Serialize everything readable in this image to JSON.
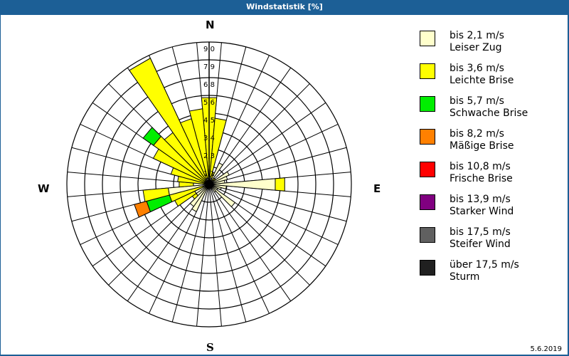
{
  "window": {
    "title": "Windstatistik [%]"
  },
  "footer": {
    "date": "5.6.2019"
  },
  "compass": {
    "n": "N",
    "e": "E",
    "s": "S",
    "w": "W"
  },
  "legend": [
    {
      "range": "bis 2,1 m/s",
      "name": "Leiser Zug",
      "color": "#ffffcc"
    },
    {
      "range": "bis 3,6 m/s",
      "name": "Leichte Brise",
      "color": "#ffff00"
    },
    {
      "range": "bis 5,7 m/s",
      "name": "Schwache Brise",
      "color": "#00ee00"
    },
    {
      "range": "bis 8,2 m/s",
      "name": "Mäßige Brise",
      "color": "#ff8000"
    },
    {
      "range": "bis 10,8 m/s",
      "name": "Frische Brise",
      "color": "#ff0000"
    },
    {
      "range": "bis 13,9 m/s",
      "name": "Starker Wind",
      "color": "#800080"
    },
    {
      "range": "bis 17,5 m/s",
      "name": "Steifer Wind",
      "color": "#606060"
    },
    {
      "range": "über 17,5 m/s",
      "name": "Sturm",
      "color": "#202020"
    }
  ],
  "chart_data": {
    "type": "polar-stacked-bar (wind rose)",
    "title": "Windstatistik [%]",
    "unit": "%",
    "radial_ticks": [
      "1,1",
      "2,3",
      "3,4",
      "4,5",
      "5,6",
      "6,8",
      "7,9",
      "9,0"
    ],
    "rmax": 9.0,
    "sector_width_deg": 10,
    "series_names": [
      "Leiser Zug",
      "Leichte Brise",
      "Schwache Brise",
      "Mäßige Brise"
    ],
    "sectors": [
      {
        "dir": 0,
        "values": [
          0.6,
          4.9,
          0,
          0
        ]
      },
      {
        "dir": 10,
        "values": [
          0.5,
          3.7,
          0,
          0
        ]
      },
      {
        "dir": 20,
        "values": [
          0.4,
          0.4,
          0,
          0
        ]
      },
      {
        "dir": 30,
        "values": [
          1.5,
          0.0,
          0,
          0
        ]
      },
      {
        "dir": 40,
        "values": [
          0.3,
          0.2,
          0,
          0
        ]
      },
      {
        "dir": 50,
        "values": [
          0.4,
          0.1,
          0,
          0
        ]
      },
      {
        "dir": 60,
        "values": [
          1.4,
          0.0,
          0,
          0
        ]
      },
      {
        "dir": 70,
        "values": [
          1.2,
          0.0,
          0,
          0
        ]
      },
      {
        "dir": 80,
        "values": [
          1.0,
          0.0,
          0,
          0
        ]
      },
      {
        "dir": 90,
        "values": [
          4.2,
          0.6,
          0,
          0
        ]
      },
      {
        "dir": 100,
        "values": [
          1.1,
          0.0,
          0,
          0
        ]
      },
      {
        "dir": 110,
        "values": [
          0.8,
          0.0,
          0,
          0
        ]
      },
      {
        "dir": 120,
        "values": [
          0.6,
          0.0,
          0,
          0
        ]
      },
      {
        "dir": 130,
        "values": [
          2.0,
          0.0,
          0,
          0
        ]
      },
      {
        "dir": 140,
        "values": [
          0.6,
          0.0,
          0,
          0
        ]
      },
      {
        "dir": 150,
        "values": [
          0.3,
          0.0,
          0,
          0
        ]
      },
      {
        "dir": 160,
        "values": [
          0.2,
          0.0,
          0,
          0
        ]
      },
      {
        "dir": 170,
        "values": [
          0.2,
          0.0,
          0,
          0
        ]
      },
      {
        "dir": 180,
        "values": [
          0.2,
          0.0,
          0,
          0
        ]
      },
      {
        "dir": 190,
        "values": [
          0.2,
          0.0,
          0,
          0
        ]
      },
      {
        "dir": 200,
        "values": [
          0.3,
          0.0,
          0,
          0
        ]
      },
      {
        "dir": 210,
        "values": [
          1.9,
          0.0,
          0,
          0
        ]
      },
      {
        "dir": 220,
        "values": [
          1.7,
          0.0,
          0,
          0
        ]
      },
      {
        "dir": 230,
        "values": [
          1.0,
          0.3,
          0,
          0
        ]
      },
      {
        "dir": 240,
        "values": [
          1.0,
          1.4,
          0,
          0
        ]
      },
      {
        "dir": 250,
        "values": [
          0.4,
          2.2,
          1.5,
          0.8
        ]
      },
      {
        "dir": 260,
        "values": [
          2.6,
          1.6,
          0,
          0
        ]
      },
      {
        "dir": 270,
        "values": [
          1.0,
          0.9,
          0,
          0
        ]
      },
      {
        "dir": 280,
        "values": [
          0.3,
          1.7,
          0,
          0
        ]
      },
      {
        "dir": 290,
        "values": [
          0.3,
          2.2,
          0,
          0
        ]
      },
      {
        "dir": 300,
        "values": [
          0.3,
          3.6,
          0,
          0
        ]
      },
      {
        "dir": 310,
        "values": [
          0.3,
          4.0,
          0.8,
          0
        ]
      },
      {
        "dir": 320,
        "values": [
          0.3,
          3.7,
          0,
          0
        ]
      },
      {
        "dir": 330,
        "values": [
          0.4,
          8.4,
          0,
          0
        ]
      },
      {
        "dir": 340,
        "values": [
          0.4,
          3.9,
          0,
          0
        ]
      },
      {
        "dir": 350,
        "values": [
          0.4,
          4.4,
          0,
          0
        ]
      }
    ]
  }
}
